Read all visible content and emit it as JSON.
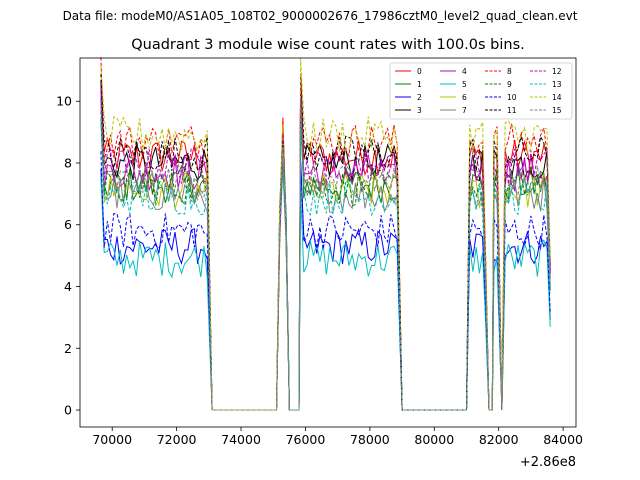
{
  "figure": {
    "suptitle": "Data file: modeM0/AS1A05_108T02_9000002676_17986cztM0_level2_quad_clean.evt"
  },
  "chart_data": {
    "type": "line",
    "title": "Quadrant 3 module wise count rates with 100.0s bins.",
    "xlabel": "",
    "ylabel": "",
    "x_offset_label": "+2.86e8",
    "xlim": [
      69000,
      84400
    ],
    "ylim": [
      -0.55,
      11.4
    ],
    "x_ticks": [
      70000,
      72000,
      74000,
      76000,
      78000,
      80000,
      82000,
      84000
    ],
    "x_tick_labels": [
      "70000",
      "72000",
      "74000",
      "76000",
      "78000",
      "80000",
      "82000",
      "84000"
    ],
    "y_ticks": [
      0,
      2,
      4,
      6,
      8,
      10
    ],
    "y_tick_labels": [
      "0",
      "2",
      "4",
      "6",
      "8",
      "10"
    ],
    "bin_seconds": 100,
    "segments": [
      {
        "start": 69650,
        "end": 73000,
        "level": "on",
        "start_spike": true
      },
      {
        "start": 73100,
        "end": 75150,
        "level": "zero"
      },
      {
        "start": 75200,
        "end": 75450,
        "level": "flare"
      },
      {
        "start": 75500,
        "end": 75800,
        "level": "zero"
      },
      {
        "start": 75850,
        "end": 78900,
        "level": "on",
        "start_spike": true
      },
      {
        "start": 79000,
        "end": 81050,
        "level": "zero"
      },
      {
        "start": 81100,
        "end": 81600,
        "level": "on"
      },
      {
        "start": 81700,
        "end": 81800,
        "level": "zero"
      },
      {
        "start": 81850,
        "end": 82000,
        "level": "on"
      },
      {
        "start": 82100,
        "end": 82150,
        "level": "zero"
      },
      {
        "start": 82200,
        "end": 83600,
        "level": "on"
      }
    ],
    "series": [
      {
        "name": "0",
        "mean": 8.2,
        "color": "#ff0000",
        "dash": "solid"
      },
      {
        "name": "1",
        "mean": 7.3,
        "color": "#008000",
        "dash": "solid"
      },
      {
        "name": "2",
        "mean": 5.3,
        "color": "#0000ff",
        "dash": "solid"
      },
      {
        "name": "3",
        "mean": 8.0,
        "color": "#000000",
        "dash": "solid"
      },
      {
        "name": "4",
        "mean": 7.7,
        "color": "#c000c0",
        "dash": "solid"
      },
      {
        "name": "5",
        "mean": 4.9,
        "color": "#00bfbf",
        "dash": "solid"
      },
      {
        "name": "6",
        "mean": 7.1,
        "color": "#bfbf00",
        "dash": "solid"
      },
      {
        "name": "7",
        "mean": 7.0,
        "color": "#808080",
        "dash": "solid"
      },
      {
        "name": "8",
        "mean": 8.7,
        "color": "#ff0000",
        "dash": "dashed"
      },
      {
        "name": "9",
        "mean": 7.2,
        "color": "#008000",
        "dash": "dashed"
      },
      {
        "name": "10",
        "mean": 5.8,
        "color": "#0000ff",
        "dash": "dashed"
      },
      {
        "name": "11",
        "mean": 8.3,
        "color": "#000000",
        "dash": "dashed"
      },
      {
        "name": "12",
        "mean": 7.9,
        "color": "#c000c0",
        "dash": "dashed"
      },
      {
        "name": "13",
        "mean": 6.9,
        "color": "#00bfbf",
        "dash": "dashed"
      },
      {
        "name": "14",
        "mean": 8.9,
        "color": "#bfbf00",
        "dash": "dashed"
      },
      {
        "name": "15",
        "mean": 7.4,
        "color": "#808080",
        "dash": "dashed"
      }
    ],
    "legend": {
      "placement": "top-right",
      "columns": 4
    }
  }
}
